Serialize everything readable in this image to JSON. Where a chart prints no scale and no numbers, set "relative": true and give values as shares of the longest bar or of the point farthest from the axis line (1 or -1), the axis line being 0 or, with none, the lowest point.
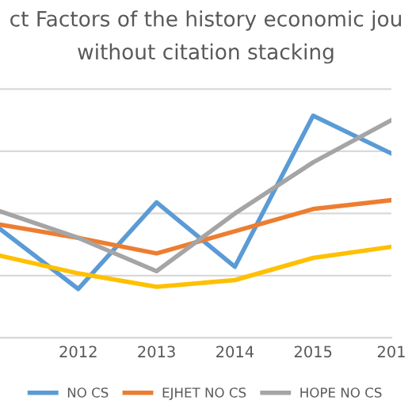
{
  "chart_data": {
    "type": "line",
    "title": "ct Factors of the history economic jou",
    "subtitle": "without citation stacking",
    "categories": [
      null,
      "2012",
      "2013",
      "2014",
      "2015",
      "201"
    ],
    "relative": true,
    "grid": "y",
    "legend": "bottom",
    "marker": "none",
    "line_style": "solid",
    "series": [
      {
        "name": "NO CS",
        "color": "#5b9bd5",
        "values": [
          0.49,
          0.22,
          0.61,
          0.32,
          1.0,
          0.83
        ]
      },
      {
        "name": "EJHET NO CS",
        "color": "#ed7d31",
        "values": [
          0.51,
          0.45,
          0.38,
          0.48,
          0.58,
          0.62
        ]
      },
      {
        "name": "HOPE NO CS",
        "color": "#a5a5a5",
        "values": [
          0.57,
          0.45,
          0.3,
          0.56,
          0.79,
          0.98
        ]
      },
      {
        "color": "#ffc000",
        "values": [
          0.37,
          0.29,
          0.23,
          0.26,
          0.36,
          0.41
        ]
      }
    ]
  }
}
